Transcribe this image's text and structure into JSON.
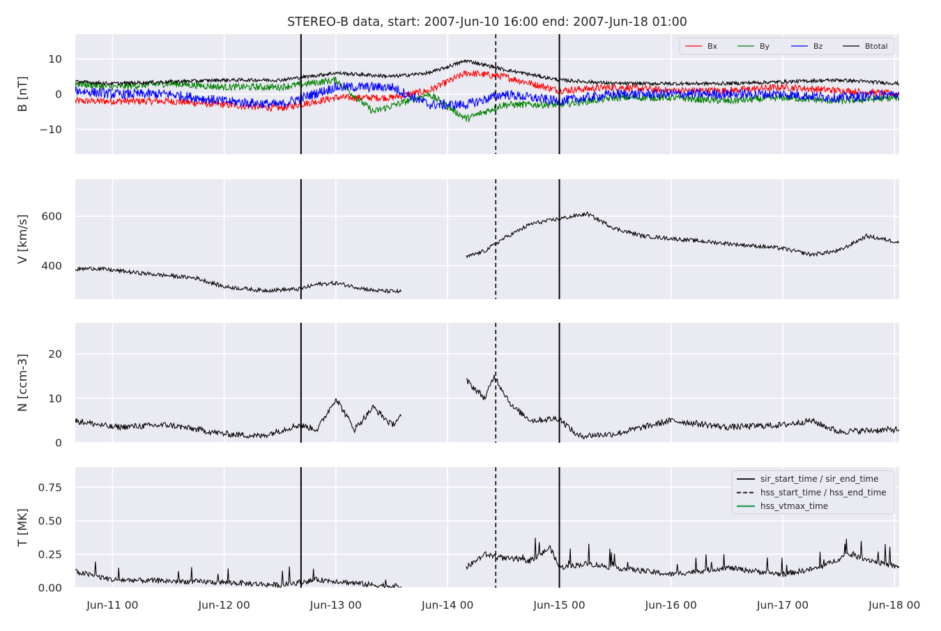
{
  "chart_data": {
    "type": "line",
    "title": "STEREO-B data, start: 2007-Jun-10 16:00  end: 2007-Jun-18 01:00",
    "x_range": [
      "2007-06-10T16:00",
      "2007-06-18T01:00"
    ],
    "x_ticks": [
      {
        "t": "2007-06-11T00:00",
        "label": "Jun-11 00"
      },
      {
        "t": "2007-06-12T00:00",
        "label": "Jun-12 00"
      },
      {
        "t": "2007-06-13T00:00",
        "label": "Jun-13 00"
      },
      {
        "t": "2007-06-14T00:00",
        "label": "Jun-14 00"
      },
      {
        "t": "2007-06-15T00:00",
        "label": "Jun-15 00"
      },
      {
        "t": "2007-06-16T00:00",
        "label": "Jun-16 00"
      },
      {
        "t": "2007-06-17T00:00",
        "label": "Jun-17 00"
      },
      {
        "t": "2007-06-18T00:00",
        "label": "Jun-18 00"
      }
    ],
    "events": {
      "sir_start_time": "2007-06-12T16:30",
      "hss_start_time": "2007-06-14T10:20",
      "sir_end_time": "2007-06-15T00:00",
      "hss_end_time": "2007-06-15T00:00"
    },
    "event_legend": [
      {
        "label": "sir_start_time / sir_end_time",
        "style": "solid",
        "color": "#000000"
      },
      {
        "label": "hss_start_time / hss_end_time",
        "style": "dashed",
        "color": "#000000"
      },
      {
        "label": "hss_vtmax_time",
        "style": "solid",
        "color": "#2ca25f"
      }
    ],
    "panels": [
      {
        "ylabel": "B [nT]",
        "ylim": [
          -17,
          17
        ],
        "yticks": [
          -10,
          0,
          10
        ],
        "ytick_labels": [
          "−10",
          "0",
          "10"
        ],
        "legend": "top-right",
        "series": [
          {
            "name": "Bx",
            "color": "#ff0000",
            "x": [
              "2007-06-10T16:00",
              "2007-06-11T00:00",
              "2007-06-11T12:00",
              "2007-06-12T00:00",
              "2007-06-12T12:00",
              "2007-06-13T00:00",
              "2007-06-13T12:00",
              "2007-06-13T20:00",
              "2007-06-14T04:00",
              "2007-06-14T12:00",
              "2007-06-15T00:00",
              "2007-06-15T12:00",
              "2007-06-16T00:00",
              "2007-06-16T12:00",
              "2007-06-17T00:00",
              "2007-06-17T12:00",
              "2007-06-18T01:00"
            ],
            "values": [
              -2,
              -2,
              -2,
              -3,
              -4,
              -1,
              -1,
              1,
              6,
              5,
              1,
              2,
              1,
              1,
              2,
              1,
              0
            ]
          },
          {
            "name": "By",
            "color": "#008000",
            "x": [
              "2007-06-10T16:00",
              "2007-06-11T00:00",
              "2007-06-11T12:00",
              "2007-06-12T00:00",
              "2007-06-12T12:00",
              "2007-06-13T00:00",
              "2007-06-13T08:00",
              "2007-06-13T20:00",
              "2007-06-14T04:00",
              "2007-06-14T12:00",
              "2007-06-15T00:00",
              "2007-06-15T12:00",
              "2007-06-16T00:00",
              "2007-06-16T12:00",
              "2007-06-17T00:00",
              "2007-06-17T12:00",
              "2007-06-18T01:00"
            ],
            "values": [
              3,
              2,
              3,
              2,
              2,
              4,
              -5,
              0,
              -7,
              -3,
              -3,
              -1,
              -1,
              -2,
              -1,
              -2,
              -1
            ]
          },
          {
            "name": "Bz",
            "color": "#0000ff",
            "x": [
              "2007-06-10T16:00",
              "2007-06-11T00:00",
              "2007-06-11T12:00",
              "2007-06-12T00:00",
              "2007-06-12T12:00",
              "2007-06-13T00:00",
              "2007-06-13T12:00",
              "2007-06-13T20:00",
              "2007-06-14T04:00",
              "2007-06-14T12:00",
              "2007-06-15T00:00",
              "2007-06-15T12:00",
              "2007-06-16T00:00",
              "2007-06-16T12:00",
              "2007-06-17T00:00",
              "2007-06-17T12:00",
              "2007-06-18T01:00"
            ],
            "values": [
              1,
              0,
              0,
              -2,
              -3,
              2,
              2,
              -3,
              -3,
              0,
              -2,
              0,
              0,
              0,
              0,
              -1,
              0
            ]
          },
          {
            "name": "Btotal",
            "color": "#000000",
            "x": [
              "2007-06-10T16:00",
              "2007-06-11T00:00",
              "2007-06-11T12:00",
              "2007-06-12T00:00",
              "2007-06-12T12:00",
              "2007-06-13T00:00",
              "2007-06-13T12:00",
              "2007-06-13T20:00",
              "2007-06-14T04:00",
              "2007-06-14T12:00",
              "2007-06-15T00:00",
              "2007-06-15T12:00",
              "2007-06-16T00:00",
              "2007-06-16T12:00",
              "2007-06-17T00:00",
              "2007-06-17T12:00",
              "2007-06-18T01:00"
            ],
            "values": [
              3.5,
              3,
              3.5,
              4,
              4,
              6,
              5,
              6,
              9.5,
              7,
              4,
              3,
              3,
              3,
              3.5,
              4,
              3
            ]
          }
        ]
      },
      {
        "ylabel": "V [km/s]",
        "ylim": [
          265,
          750
        ],
        "yticks": [
          400,
          600
        ],
        "ytick_labels": [
          "400",
          "600"
        ],
        "series": [
          {
            "name": "",
            "color": "#000000",
            "segments": [
              {
                "x": [
                  "2007-06-10T16:00",
                  "2007-06-10T20:00",
                  "2007-06-11T06:00",
                  "2007-06-11T18:00",
                  "2007-06-12T00:00",
                  "2007-06-12T08:00",
                  "2007-06-12T16:00",
                  "2007-06-12T20:00",
                  "2007-06-13T00:00",
                  "2007-06-13T08:00",
                  "2007-06-13T14:00"
                ],
                "values": [
                  385,
                  390,
                  370,
                  350,
                  315,
                  300,
                  305,
                  325,
                  330,
                  300,
                  295
                ]
              },
              {
                "x": [
                  "2007-06-14T04:00",
                  "2007-06-14T08:00",
                  "2007-06-14T12:00",
                  "2007-06-14T18:00",
                  "2007-06-15T00:00",
                  "2007-06-15T06:00",
                  "2007-06-15T12:00",
                  "2007-06-15T18:00",
                  "2007-06-16T00:00",
                  "2007-06-16T12:00",
                  "2007-06-17T00:00",
                  "2007-06-17T06:00",
                  "2007-06-17T12:00",
                  "2007-06-17T18:00",
                  "2007-06-18T01:00"
                ],
                "values": [
                  435,
                  460,
                  510,
                  570,
                  590,
                  610,
                  550,
                  520,
                  510,
                  490,
                  470,
                  445,
                  460,
                  520,
                  495
                ]
              }
            ]
          }
        ]
      },
      {
        "ylabel": "N [ccm-3]",
        "ylim": [
          0,
          27
        ],
        "yticks": [
          0,
          10,
          20
        ],
        "ytick_labels": [
          "0",
          "10",
          "20"
        ],
        "series": [
          {
            "name": "",
            "color": "#000000",
            "segments": [
              {
                "x": [
                  "2007-06-10T16:00",
                  "2007-06-11T00:00",
                  "2007-06-11T12:00",
                  "2007-06-12T00:00",
                  "2007-06-12T08:00",
                  "2007-06-12T16:00",
                  "2007-06-12T20:00",
                  "2007-06-13T00:00",
                  "2007-06-13T04:00",
                  "2007-06-13T08:00",
                  "2007-06-13T12:00",
                  "2007-06-13T14:00"
                ],
                "values": [
                  5,
                  3.5,
                  4,
                  2,
                  1.5,
                  4,
                  3,
                  10,
                  3,
                  8,
                  4,
                  6
                ]
              },
              {
                "x": [
                  "2007-06-14T04:00",
                  "2007-06-14T08:00",
                  "2007-06-14T10:00",
                  "2007-06-14T14:00",
                  "2007-06-14T18:00",
                  "2007-06-15T00:00",
                  "2007-06-15T04:00",
                  "2007-06-15T12:00",
                  "2007-06-16T00:00",
                  "2007-06-16T12:00",
                  "2007-06-17T00:00",
                  "2007-06-17T06:00",
                  "2007-06-17T12:00",
                  "2007-06-18T01:00"
                ],
                "values": [
                  14,
                  10,
                  15,
                  8,
                  5,
                  5.5,
                  1.5,
                  2,
                  5,
                  3.5,
                  4,
                  5,
                  2.5,
                  3
                ]
              }
            ]
          }
        ]
      },
      {
        "ylabel": "T [MK]",
        "ylim": [
          0,
          0.9
        ],
        "yticks": [
          0.0,
          0.25,
          0.5,
          0.75
        ],
        "ytick_labels": [
          "0.00",
          "0.25",
          "0.50",
          "0.75"
        ],
        "legend": "top-right",
        "series": [
          {
            "name": "",
            "color": "#000000",
            "segments": [
              {
                "x": [
                  "2007-06-10T16:00",
                  "2007-06-11T00:00",
                  "2007-06-11T12:00",
                  "2007-06-12T00:00",
                  "2007-06-12T12:00",
                  "2007-06-12T20:00",
                  "2007-06-13T00:00",
                  "2007-06-13T08:00",
                  "2007-06-13T14:00"
                ],
                "values": [
                  0.12,
                  0.06,
                  0.05,
                  0.04,
                  0.02,
                  0.06,
                  0.05,
                  0.02,
                  0.01
                ]
              },
              {
                "x": [
                  "2007-06-14T04:00",
                  "2007-06-14T08:00",
                  "2007-06-14T12:00",
                  "2007-06-14T18:00",
                  "2007-06-14T22:00",
                  "2007-06-15T00:00",
                  "2007-06-15T06:00",
                  "2007-06-15T12:00",
                  "2007-06-16T00:00",
                  "2007-06-16T12:00",
                  "2007-06-17T00:00",
                  "2007-06-17T08:00",
                  "2007-06-17T14:00",
                  "2007-06-18T01:00"
                ],
                "values": [
                  0.15,
                  0.25,
                  0.22,
                  0.2,
                  0.3,
                  0.15,
                  0.18,
                  0.15,
                  0.1,
                  0.15,
                  0.1,
                  0.15,
                  0.25,
                  0.15
                ]
              }
            ]
          }
        ]
      }
    ]
  }
}
